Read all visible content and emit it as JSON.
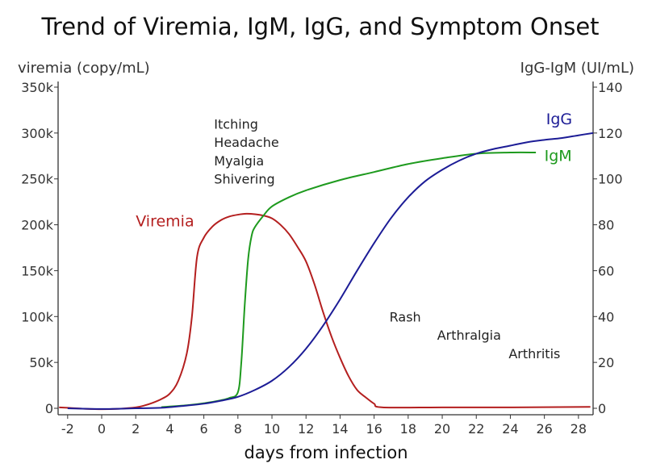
{
  "chart_data": {
    "type": "line",
    "title": "Trend of Viremia, IgM, IgG, and Symptom Onset",
    "xlabel": "days from infection",
    "ylabel_left": "viremia (copy/mL)",
    "ylabel_right": "IgG-IgM (UI/mL)",
    "xlim": [
      -2.56,
      28.86
    ],
    "ylim_left": [
      0,
      350000
    ],
    "ylim_right": [
      0,
      140
    ],
    "x_ticks": [
      -2,
      0,
      2,
      4,
      6,
      8,
      10,
      12,
      14,
      16,
      18,
      20,
      22,
      24,
      26,
      28
    ],
    "x_tick_labels": [
      "-2",
      "0",
      "2",
      "4",
      "6",
      "8",
      "10",
      "12",
      "14",
      "16",
      "18",
      "20",
      "22",
      "24",
      "26",
      "28"
    ],
    "y_left_ticks": [
      0,
      50000,
      100000,
      150000,
      200000,
      250000,
      300000,
      350000
    ],
    "y_left_tick_labels": [
      "0",
      "50k",
      "100k",
      "150k",
      "200k",
      "250k",
      "300k",
      "350k"
    ],
    "y_right_ticks": [
      0,
      20,
      40,
      60,
      80,
      100,
      120,
      140
    ],
    "y_right_tick_labels": [
      "0",
      "20",
      "40",
      "60",
      "80",
      "100",
      "120",
      "140"
    ],
    "grid": false,
    "series": [
      {
        "name": "Viremia",
        "axis": "left",
        "color": "#b41f1f",
        "x": [
          -2.5,
          -2,
          -1,
          0,
          1,
          2,
          2.5,
          3,
          3.5,
          4,
          4.5,
          5,
          5.3,
          5.6,
          6,
          6.5,
          7,
          7.5,
          8,
          8.5,
          9,
          9.5,
          10,
          10.5,
          11,
          11.5,
          12,
          12.5,
          13,
          13.5,
          14,
          14.5,
          15,
          15.5,
          16,
          16.5,
          20,
          24,
          28.7
        ],
        "y": [
          1000,
          500,
          -500,
          -1000,
          -500,
          1000,
          3000,
          6000,
          10000,
          16000,
          30000,
          60000,
          100000,
          165000,
          186000,
          198000,
          205000,
          209000,
          211000,
          212000,
          211500,
          210000,
          207000,
          200000,
          190000,
          176000,
          160000,
          135000,
          105000,
          78000,
          55000,
          35000,
          20000,
          12000,
          5000,
          1000,
          1000,
          1000,
          1500
        ]
      },
      {
        "name": "IgM",
        "axis": "right",
        "color": "#1e9a1e",
        "x": [
          3.5,
          5,
          6,
          7,
          7.5,
          8,
          8.2,
          8.4,
          8.6,
          8.8,
          9,
          9.5,
          10,
          11,
          12,
          14,
          16,
          18,
          20,
          22,
          24,
          25.5
        ],
        "y": [
          0.5,
          1.3,
          2.2,
          3.5,
          4.5,
          7,
          20,
          45,
          65,
          75,
          79,
          84,
          88,
          92,
          95,
          99.5,
          103,
          106.5,
          109,
          111,
          111.5,
          111.5
        ]
      },
      {
        "name": "IgG",
        "axis": "right",
        "color": "#1c1c96",
        "x": [
          -2,
          0,
          2,
          3.5,
          5,
          6,
          7,
          8,
          9,
          10,
          11,
          12,
          13,
          14,
          15,
          16,
          17,
          18,
          19,
          20,
          21,
          22,
          23,
          24,
          25,
          26,
          27,
          28,
          28.86
        ],
        "y": [
          0,
          -0.3,
          0,
          0.2,
          1.2,
          2,
          3.3,
          5,
          8,
          12,
          18,
          26,
          36,
          47.5,
          60,
          72,
          83,
          92,
          99,
          104,
          108,
          111,
          113,
          114.5,
          116,
          117,
          117.8,
          119,
          120
        ]
      }
    ],
    "annotations": [
      {
        "text": "Viremia",
        "x": 2.0,
        "y_right": 81.5,
        "color": "#b41f1f"
      },
      {
        "text": "IgG",
        "x": 26.1,
        "y_right": 126,
        "color": "#1c1c96"
      },
      {
        "text": "IgM",
        "x": 26.0,
        "y_right": 110,
        "color": "#1e9a1e"
      },
      {
        "text": "Itching",
        "x": 6.6,
        "y_right": 124,
        "color": "#222222"
      },
      {
        "text": "Headache",
        "x": 6.6,
        "y_right": 116,
        "color": "#222222"
      },
      {
        "text": "Myalgia",
        "x": 6.6,
        "y_right": 108,
        "color": "#222222"
      },
      {
        "text": "Shivering",
        "x": 6.6,
        "y_right": 100,
        "color": "#222222"
      },
      {
        "text": "Rash",
        "x": 16.9,
        "y_right": 40,
        "color": "#222222"
      },
      {
        "text": "Arthralgia",
        "x": 19.7,
        "y_right": 32,
        "color": "#222222"
      },
      {
        "text": "Arthritis",
        "x": 23.9,
        "y_right": 24,
        "color": "#222222"
      }
    ]
  }
}
